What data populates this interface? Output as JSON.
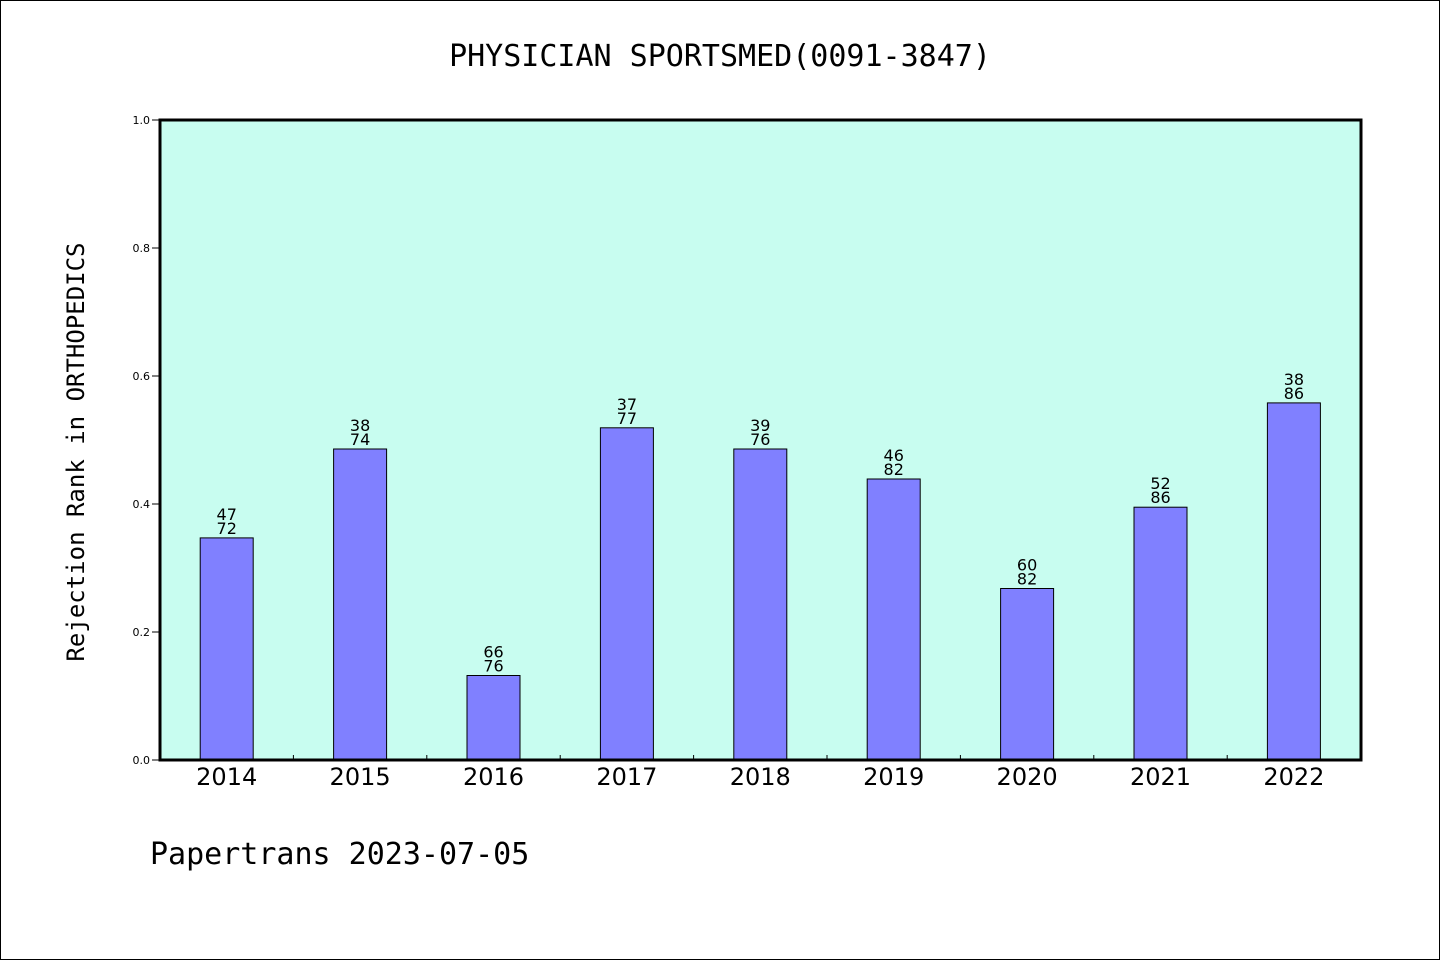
{
  "chart_data": {
    "type": "bar",
    "title": "PHYSICIAN SPORTSMED(0091-3847)",
    "xlabel": "",
    "ylabel": "Rejection Rank in ORTHOPEDICS",
    "ylim": [
      0,
      1.0
    ],
    "yticks": [
      "0.0",
      "0.2",
      "0.4",
      "0.6",
      "0.8",
      "1.0"
    ],
    "categories": [
      "2014",
      "2015",
      "2016",
      "2017",
      "2018",
      "2019",
      "2020",
      "2021",
      "2022"
    ],
    "values": [
      0.347,
      0.486,
      0.132,
      0.519,
      0.486,
      0.439,
      0.268,
      0.395,
      0.558
    ],
    "labels": [
      {
        "top": "47",
        "bottom": "72"
      },
      {
        "top": "38",
        "bottom": "74"
      },
      {
        "top": "66",
        "bottom": "76"
      },
      {
        "top": "37",
        "bottom": "77"
      },
      {
        "top": "39",
        "bottom": "76"
      },
      {
        "top": "46",
        "bottom": "82"
      },
      {
        "top": "60",
        "bottom": "82"
      },
      {
        "top": "52",
        "bottom": "86"
      },
      {
        "top": "38",
        "bottom": "86"
      }
    ],
    "grid": false,
    "bar_color": "#8080ff",
    "plot_background": "#c8fdf0"
  },
  "footer": {
    "text": "Papertrans 2023-07-05"
  }
}
